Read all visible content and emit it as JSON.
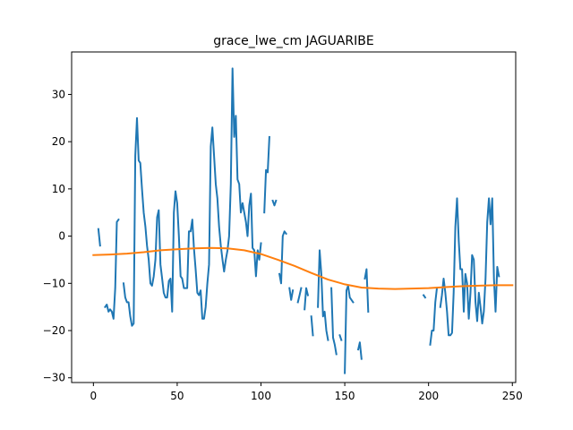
{
  "chart_data": {
    "type": "line",
    "title": "grace_lwe_cm JAGUARIBE",
    "xlabel": "",
    "ylabel": "",
    "xlim": [
      -13,
      252
    ],
    "ylim": [
      -31,
      39
    ],
    "xticks": [
      0,
      50,
      100,
      150,
      200,
      250
    ],
    "yticks": [
      -30,
      -20,
      -10,
      0,
      10,
      20,
      30
    ],
    "grid": false,
    "legend": "none",
    "colors": {
      "series": "#1f77b4",
      "trend": "#ff7f0e",
      "axis": "#000000",
      "background": "#ffffff"
    },
    "series": [
      {
        "color": "#1f77b4",
        "segments": [
          [
            [
              3,
              1.5
            ],
            [
              4,
              -2
            ]
          ],
          [
            [
              7,
              -15
            ],
            [
              8,
              -14.5
            ],
            [
              9,
              -16
            ],
            [
              10,
              -15.5
            ],
            [
              11,
              -16
            ],
            [
              12,
              -17.5
            ],
            [
              13,
              -11
            ],
            [
              14,
              3
            ],
            [
              15,
              3.5
            ]
          ],
          [
            [
              18,
              -10
            ],
            [
              19,
              -13
            ],
            [
              20,
              -14
            ],
            [
              21,
              -14
            ],
            [
              22,
              -17
            ],
            [
              23,
              -19
            ],
            [
              24,
              -18.5
            ],
            [
              25,
              17
            ],
            [
              26,
              25
            ],
            [
              27,
              16
            ],
            [
              28,
              15.5
            ],
            [
              29,
              10
            ],
            [
              30,
              5
            ],
            [
              31,
              2
            ],
            [
              32,
              -2
            ],
            [
              33,
              -5
            ],
            [
              34,
              -10
            ],
            [
              35,
              -10.5
            ],
            [
              36,
              -8.5
            ],
            [
              37,
              -5
            ],
            [
              38,
              4
            ],
            [
              39,
              5.5
            ],
            [
              40,
              -6
            ],
            [
              41,
              -9
            ],
            [
              42,
              -12
            ],
            [
              43,
              -13
            ],
            [
              44,
              -13
            ],
            [
              45,
              -9.5
            ],
            [
              46,
              -9
            ],
            [
              47,
              -16
            ],
            [
              48,
              5
            ],
            [
              49,
              9.5
            ],
            [
              50,
              7
            ],
            [
              51,
              0
            ],
            [
              52,
              -8.5
            ],
            [
              53,
              -9
            ],
            [
              54,
              -11
            ],
            [
              55,
              -11
            ],
            [
              56,
              -11
            ],
            [
              57,
              1
            ],
            [
              58,
              1
            ],
            [
              59,
              3.5
            ],
            [
              60,
              -2.5
            ],
            [
              61,
              -7
            ],
            [
              62,
              -12
            ],
            [
              63,
              -12.5
            ],
            [
              64,
              -11.5
            ],
            [
              65,
              -17.5
            ],
            [
              66,
              -17.5
            ],
            [
              67,
              -15
            ],
            [
              68,
              -10
            ],
            [
              69,
              -6
            ],
            [
              70,
              19
            ],
            [
              71,
              23
            ],
            [
              72,
              17
            ],
            [
              73,
              11
            ],
            [
              74,
              8
            ],
            [
              75,
              2
            ],
            [
              76,
              -2
            ],
            [
              77,
              -5
            ],
            [
              78,
              -7.5
            ],
            [
              79,
              -5
            ],
            [
              80,
              -3
            ],
            [
              81,
              0
            ],
            [
              82,
              11
            ],
            [
              83,
              35.5
            ],
            [
              84,
              21
            ],
            [
              85,
              25.5
            ],
            [
              86,
              12
            ],
            [
              87,
              11
            ],
            [
              88,
              5
            ],
            [
              89,
              7
            ],
            [
              90,
              5
            ],
            [
              91,
              3
            ],
            [
              92,
              0
            ],
            [
              93,
              6.5
            ],
            [
              94,
              9
            ],
            [
              95,
              -2.5
            ],
            [
              96,
              -3
            ],
            [
              97,
              -8.5
            ],
            [
              98,
              -3
            ],
            [
              99,
              -5
            ],
            [
              100,
              -1.5
            ]
          ],
          [
            [
              102,
              5
            ],
            [
              103,
              14
            ],
            [
              104,
              13.5
            ],
            [
              105,
              21
            ]
          ],
          [
            [
              107,
              7.5
            ],
            [
              108,
              6.5
            ],
            [
              109,
              7.5
            ]
          ],
          [
            [
              111,
              -8
            ],
            [
              112,
              -10
            ],
            [
              113,
              0
            ],
            [
              114,
              1
            ],
            [
              115,
              0.5
            ]
          ],
          [
            [
              117,
              -11
            ],
            [
              118,
              -13.5
            ],
            [
              119,
              -11.5
            ]
          ],
          [
            [
              122,
              -14
            ],
            [
              123,
              -12.5
            ],
            [
              124,
              -11
            ]
          ],
          [
            [
              126,
              -15.5
            ],
            [
              127,
              -11
            ],
            [
              128,
              -12.5
            ]
          ],
          [
            [
              130,
              -17
            ],
            [
              131,
              -21
            ]
          ],
          [
            [
              134,
              -15
            ],
            [
              135,
              -3
            ],
            [
              136,
              -8
            ],
            [
              137,
              -17
            ],
            [
              138,
              -16
            ],
            [
              139,
              -20
            ],
            [
              140,
              -22
            ]
          ],
          [
            [
              142,
              -11
            ],
            [
              143,
              -21.5
            ],
            [
              144,
              -23
            ],
            [
              145,
              -25
            ]
          ],
          [
            [
              147,
              -21
            ],
            [
              148,
              -22
            ]
          ],
          [
            [
              150,
              -29
            ],
            [
              151,
              -11.5
            ],
            [
              152,
              -10.5
            ],
            [
              153,
              -13
            ],
            [
              154,
              -13.5
            ],
            [
              155,
              -14
            ]
          ],
          [
            [
              158,
              -24
            ],
            [
              159,
              -22.5
            ],
            [
              160,
              -26
            ]
          ],
          [
            [
              162,
              -9
            ],
            [
              163,
              -7
            ],
            [
              164,
              -16
            ]
          ],
          [
            [
              197,
              -12.5
            ],
            [
              198,
              -13
            ]
          ],
          [
            [
              201,
              -23
            ],
            [
              202,
              -20
            ],
            [
              203,
              -20
            ],
            [
              204,
              -14
            ],
            [
              205,
              -11
            ]
          ],
          [
            [
              207,
              -15
            ],
            [
              208,
              -12.5
            ],
            [
              209,
              -9
            ],
            [
              210,
              -12
            ],
            [
              211,
              -16
            ],
            [
              212,
              -21
            ],
            [
              213,
              -21
            ],
            [
              214,
              -20.5
            ],
            [
              215,
              -12
            ],
            [
              216,
              2
            ],
            [
              217,
              8
            ],
            [
              218,
              -1
            ],
            [
              219,
              -7
            ],
            [
              220,
              -7
            ],
            [
              221,
              -16
            ],
            [
              222,
              -8
            ],
            [
              223,
              -10
            ],
            [
              224,
              -17.5
            ],
            [
              225,
              -12
            ],
            [
              226,
              -4
            ],
            [
              227,
              -5
            ],
            [
              228,
              -14
            ],
            [
              229,
              -18
            ],
            [
              230,
              -12
            ],
            [
              231,
              -15
            ],
            [
              232,
              -18.5
            ],
            [
              233,
              -16
            ],
            [
              234,
              -9
            ],
            [
              235,
              3
            ],
            [
              236,
              8
            ],
            [
              237,
              2.5
            ],
            [
              238,
              8
            ],
            [
              239,
              -9
            ],
            [
              240,
              -16
            ],
            [
              241,
              -6.5
            ],
            [
              242,
              -8.5
            ]
          ]
        ]
      },
      {
        "color": "#ff7f0e",
        "segments": [
          [
            [
              0,
              -4
            ],
            [
              10,
              -3.9
            ],
            [
              20,
              -3.7
            ],
            [
              30,
              -3.4
            ],
            [
              40,
              -3
            ],
            [
              50,
              -2.8
            ],
            [
              60,
              -2.6
            ],
            [
              70,
              -2.5
            ],
            [
              80,
              -2.6
            ],
            [
              90,
              -3
            ],
            [
              100,
              -3.8
            ],
            [
              110,
              -5
            ],
            [
              120,
              -6.3
            ],
            [
              130,
              -7.8
            ],
            [
              140,
              -9.2
            ],
            [
              150,
              -10.2
            ],
            [
              160,
              -10.9
            ],
            [
              170,
              -11.1
            ],
            [
              180,
              -11.2
            ],
            [
              190,
              -11.1
            ],
            [
              200,
              -11
            ],
            [
              210,
              -10.8
            ],
            [
              220,
              -10.6
            ],
            [
              230,
              -10.5
            ],
            [
              240,
              -10.4
            ],
            [
              250,
              -10.4
            ]
          ]
        ]
      }
    ]
  }
}
